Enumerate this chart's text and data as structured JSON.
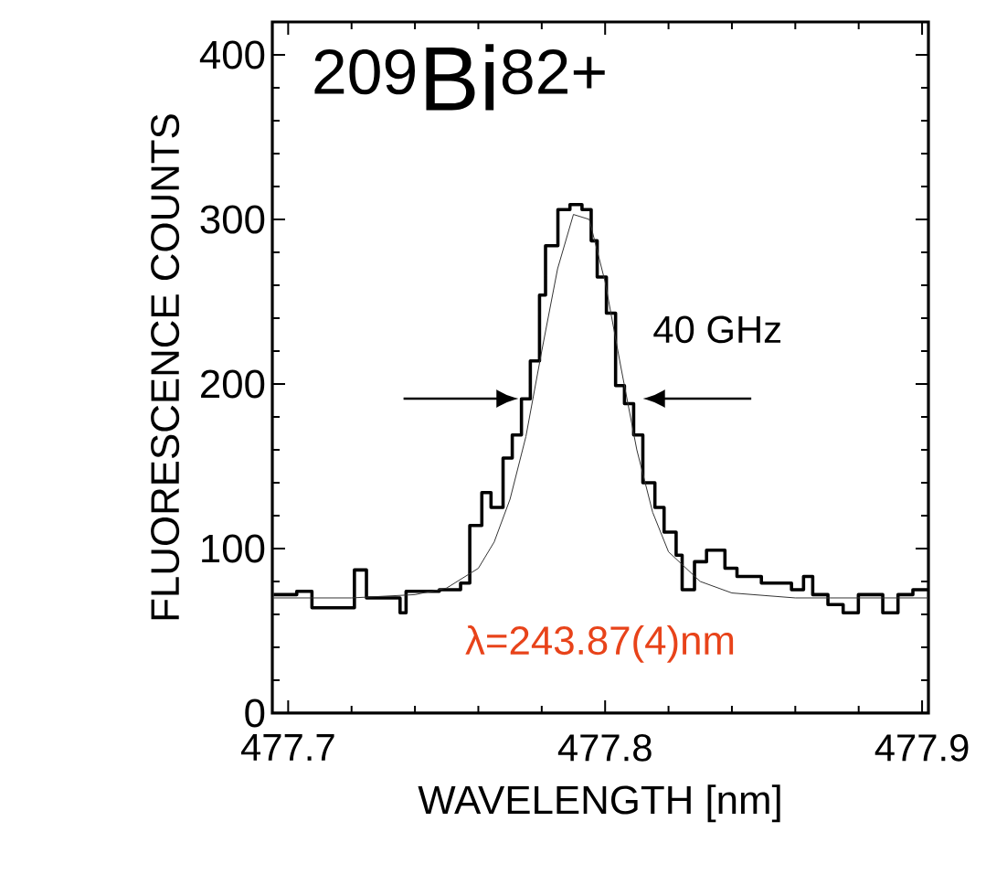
{
  "chart_data": {
    "type": "step",
    "xlabel": "WAVELENGTH [nm]",
    "ylabel": "FLUORESCENCE COUNTS",
    "xlim": [
      477.695,
      477.902
    ],
    "ylim": [
      0,
      420
    ],
    "xticks": [
      477.7,
      477.8,
      477.9
    ],
    "yticks": [
      0,
      100,
      200,
      300,
      400
    ],
    "annotations": [
      "$^{209}$Bi$^{82+}$",
      "40 GHz",
      "λ=243.87(4)nm"
    ],
    "series": [
      {
        "type": "step",
        "color": "#000000",
        "x": [
          477.6954,
          477.7027,
          477.7075,
          477.7209,
          477.7247,
          477.7353,
          477.7372,
          477.7477,
          477.7544,
          477.7573,
          477.7611,
          477.764,
          477.7678,
          477.7707,
          477.7736,
          477.7764,
          477.7793,
          477.7812,
          477.7851,
          477.7889,
          477.7927,
          477.7956,
          477.7975,
          477.8004,
          477.8033,
          477.8061,
          477.809,
          477.8119,
          477.8157,
          477.8186,
          477.8224,
          477.8243,
          477.8282,
          477.832,
          477.8378,
          477.8416,
          477.8493,
          477.8588,
          477.8626,
          477.8655,
          477.8703,
          477.8751,
          477.8799,
          477.8876,
          477.8924,
          477.8971,
          477.9019
        ],
        "values": [
          72,
          74,
          64,
          87,
          70,
          61,
          74,
          75,
          79,
          114,
          134,
          125,
          155,
          169,
          191,
          214,
          254,
          284,
          306,
          309,
          306,
          287,
          265,
          243,
          199,
          188,
          169,
          140,
          125,
          110,
          96,
          75,
          92,
          99,
          88,
          83,
          79,
          75,
          83,
          72,
          66,
          61,
          72,
          61,
          72,
          75,
          75
        ]
      },
      {
        "type": "line",
        "color": "#333333",
        "x": [
          477.695,
          477.72,
          477.74,
          477.75,
          477.76,
          477.765,
          477.77,
          477.775,
          477.78,
          477.785,
          477.79,
          477.795,
          477.8,
          477.805,
          477.81,
          477.815,
          477.82,
          477.83,
          477.84,
          477.86,
          477.88,
          477.902
        ],
        "values": [
          70,
          70,
          72,
          76,
          88,
          104,
          130,
          168,
          220,
          270,
          303,
          300,
          262,
          210,
          160,
          122,
          98,
          80,
          73,
          70,
          70,
          70
        ]
      }
    ]
  }
}
